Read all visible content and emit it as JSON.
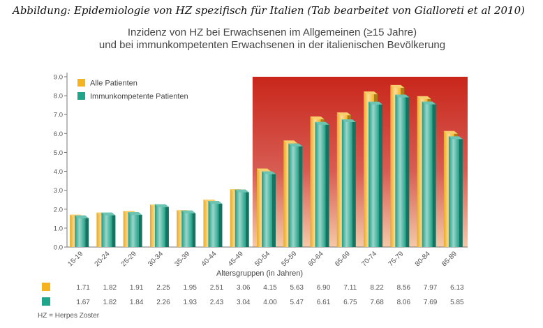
{
  "caption": "Abbildung: Epidemiologie von HZ spezifisch für Italien (Tab bearbeitet von Gialloreti et al 2010)",
  "footnote": "HZ = Herpes Zoster",
  "colors": {
    "series1": "#f5b320",
    "series2": "#20a48a",
    "highlight_top": "#c9261a",
    "highlight_bottom": "#f4c9a8"
  },
  "chart_data": {
    "type": "bar",
    "title": "Inzidenz von HZ bei Erwachsenen im Allgemeinen (≥15 Jahre)",
    "subtitle": "und bei immunkompetenten Erwachsenen in der italienischen Bevölkerung",
    "xlabel": "Altersgruppen (in Jahren)",
    "ylabel": "",
    "ylim": [
      0,
      9
    ],
    "yticks": [
      "0.0",
      "1.0",
      "2.0",
      "3.0",
      "4.0",
      "5.0",
      "6.0",
      "7.0",
      "8.0",
      "9.0"
    ],
    "categories": [
      "15-19",
      "20-24",
      "25-29",
      "30-34",
      "35-39",
      "40-44",
      "45-49",
      "50-54",
      "55-59",
      "60-64",
      "65-69",
      "70-74",
      "75-79",
      "80-84",
      "85-89"
    ],
    "series": [
      {
        "name": "Alle Patienten",
        "values": [
          1.71,
          1.82,
          1.91,
          2.25,
          1.95,
          2.51,
          3.06,
          4.15,
          5.63,
          6.9,
          7.11,
          8.22,
          8.56,
          7.97,
          6.13
        ],
        "labels": [
          "1.71",
          "1.82",
          "1.91",
          "2.25",
          "1.95",
          "2.51",
          "3.06",
          "4.15",
          "5.63",
          "6.90",
          "7.11",
          "8.22",
          "8.56",
          "7.97",
          "6.13"
        ]
      },
      {
        "name": "Immunkompetente Patienten",
        "values": [
          1.67,
          1.82,
          1.84,
          2.26,
          1.93,
          2.43,
          3.04,
          4.0,
          5.47,
          6.61,
          6.75,
          7.68,
          8.06,
          7.69,
          5.85
        ],
        "labels": [
          "1.67",
          "1.82",
          "1.84",
          "2.26",
          "1.93",
          "2.43",
          "3.04",
          "4.00",
          "5.47",
          "6.61",
          "6.75",
          "7.68",
          "8.06",
          "7.69",
          "5.85"
        ]
      }
    ],
    "highlight_from_category": "50-54",
    "legend_position": "top-left",
    "grid": false
  }
}
